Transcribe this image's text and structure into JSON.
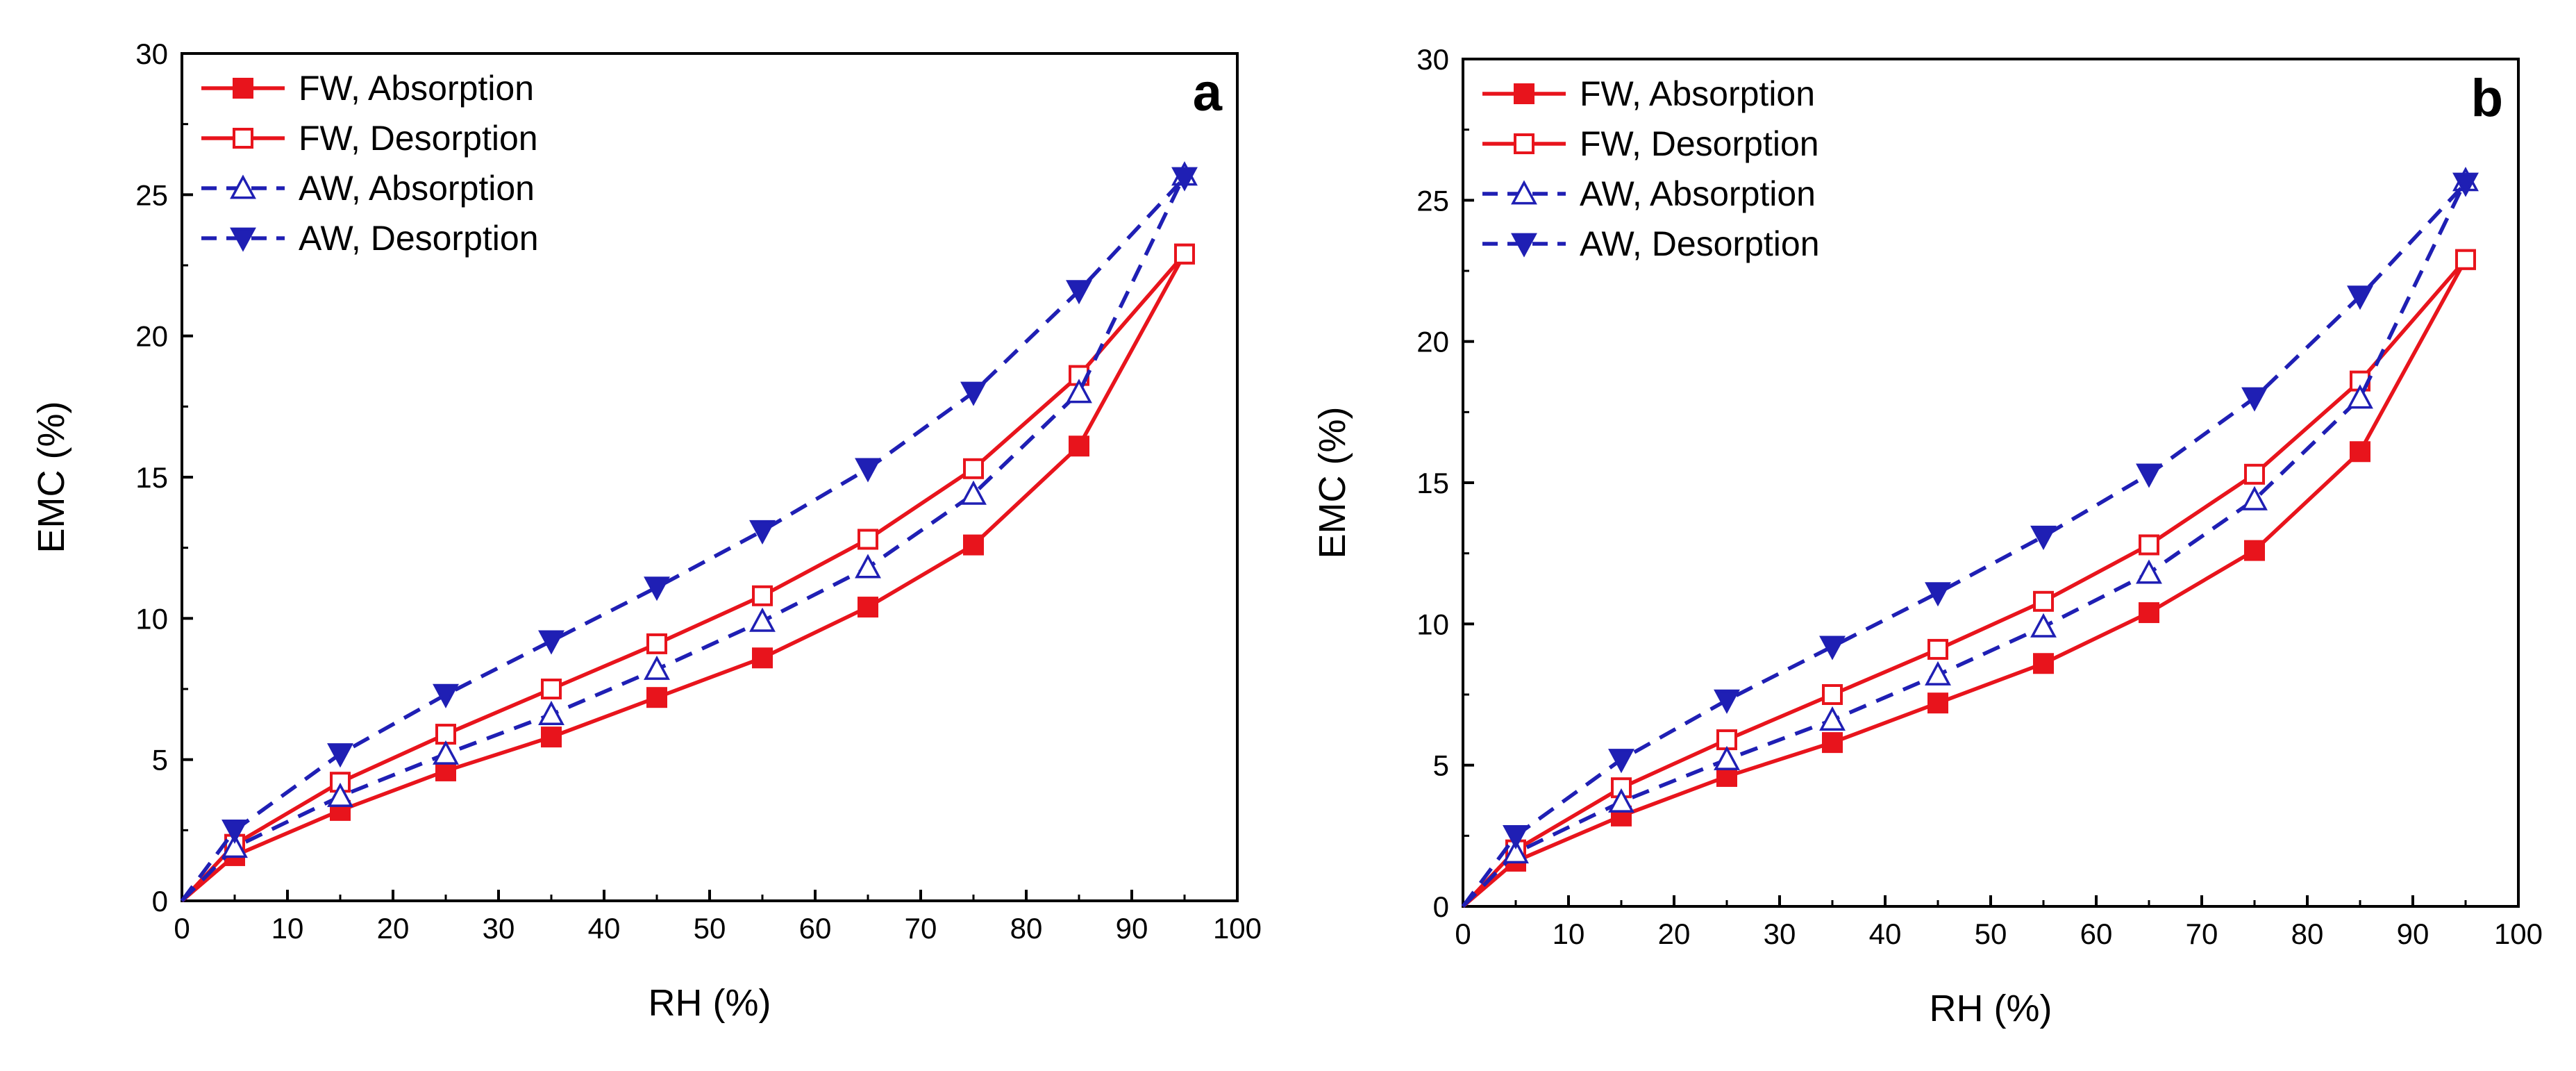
{
  "colors": {
    "fw": "#e8141c",
    "aw": "#1f1fb4",
    "axis": "#000000",
    "background": "#ffffff"
  },
  "chart_data": [
    {
      "type": "line",
      "panel_label": "a",
      "xlabel": "RH (%)",
      "ylabel": "EMC (%)",
      "xlim": [
        0,
        100
      ],
      "ylim": [
        0,
        30
      ],
      "xticks": [
        0,
        10,
        20,
        30,
        40,
        50,
        60,
        70,
        80,
        90,
        100
      ],
      "yticks": [
        0,
        5,
        10,
        15,
        20,
        25,
        30
      ],
      "grid": false,
      "legend_position": "top-left",
      "series": [
        {
          "name": "FW, Absorption",
          "color": "#e8141c",
          "line": "solid",
          "marker": "square-filled",
          "x": [
            0,
            5,
            15,
            25,
            35,
            45,
            55,
            65,
            75,
            85,
            95
          ],
          "y": [
            0,
            1.6,
            3.2,
            4.6,
            5.8,
            7.2,
            8.6,
            10.4,
            12.6,
            16.1,
            22.9
          ]
        },
        {
          "name": "FW, Desorption",
          "color": "#e8141c",
          "line": "solid",
          "marker": "square-open",
          "x": [
            0,
            5,
            15,
            25,
            35,
            45,
            55,
            65,
            75,
            85,
            95
          ],
          "y": [
            0,
            2.0,
            4.2,
            5.9,
            7.5,
            9.1,
            10.8,
            12.8,
            15.3,
            18.6,
            22.9
          ]
        },
        {
          "name": "AW, Absorption",
          "color": "#1f1fb4",
          "line": "dashed",
          "marker": "triangle-up-open",
          "x": [
            0,
            5,
            15,
            25,
            35,
            45,
            55,
            65,
            75,
            85,
            95
          ],
          "y": [
            0,
            1.9,
            3.7,
            5.2,
            6.6,
            8.2,
            9.9,
            11.8,
            14.4,
            18.0,
            25.7
          ]
        },
        {
          "name": "AW, Desorption",
          "color": "#1f1fb4",
          "line": "dashed",
          "marker": "triangle-down-filled",
          "x": [
            0,
            5,
            15,
            25,
            35,
            45,
            55,
            65,
            75,
            85,
            95
          ],
          "y": [
            0,
            2.5,
            5.2,
            7.3,
            9.2,
            11.1,
            13.1,
            15.3,
            18.0,
            21.6,
            25.6
          ]
        }
      ]
    },
    {
      "type": "line",
      "panel_label": "b",
      "xlabel": "RH (%)",
      "ylabel": "EMC (%)",
      "xlim": [
        0,
        100
      ],
      "ylim": [
        0,
        30
      ],
      "xticks": [
        0,
        10,
        20,
        30,
        40,
        50,
        60,
        70,
        80,
        90,
        100
      ],
      "yticks": [
        0,
        5,
        10,
        15,
        20,
        25,
        30
      ],
      "grid": false,
      "legend_position": "top-left",
      "series": [
        {
          "name": "FW, Absorption",
          "color": "#e8141c",
          "line": "solid",
          "marker": "square-filled",
          "x": [
            0,
            5,
            15,
            25,
            35,
            45,
            55,
            65,
            75,
            85,
            95
          ],
          "y": [
            0,
            1.6,
            3.2,
            4.6,
            5.8,
            7.2,
            8.6,
            10.4,
            12.6,
            16.1,
            22.9
          ]
        },
        {
          "name": "FW, Desorption",
          "color": "#e8141c",
          "line": "solid",
          "marker": "square-open",
          "x": [
            0,
            5,
            15,
            25,
            35,
            45,
            55,
            65,
            75,
            85,
            95
          ],
          "y": [
            0,
            2.0,
            4.2,
            5.9,
            7.5,
            9.1,
            10.8,
            12.8,
            15.3,
            18.6,
            22.9
          ]
        },
        {
          "name": "AW, Absorption",
          "color": "#1f1fb4",
          "line": "dashed",
          "marker": "triangle-up-open",
          "x": [
            0,
            5,
            15,
            25,
            35,
            45,
            55,
            65,
            75,
            85,
            95
          ],
          "y": [
            0,
            1.9,
            3.7,
            5.2,
            6.6,
            8.2,
            9.9,
            11.8,
            14.4,
            18.0,
            25.7
          ]
        },
        {
          "name": "AW, Desorption",
          "color": "#1f1fb4",
          "line": "dashed",
          "marker": "triangle-down-filled",
          "x": [
            0,
            5,
            15,
            25,
            35,
            45,
            55,
            65,
            75,
            85,
            95
          ],
          "y": [
            0,
            2.5,
            5.2,
            7.3,
            9.2,
            11.1,
            13.1,
            15.3,
            18.0,
            21.6,
            25.6
          ]
        }
      ]
    }
  ]
}
